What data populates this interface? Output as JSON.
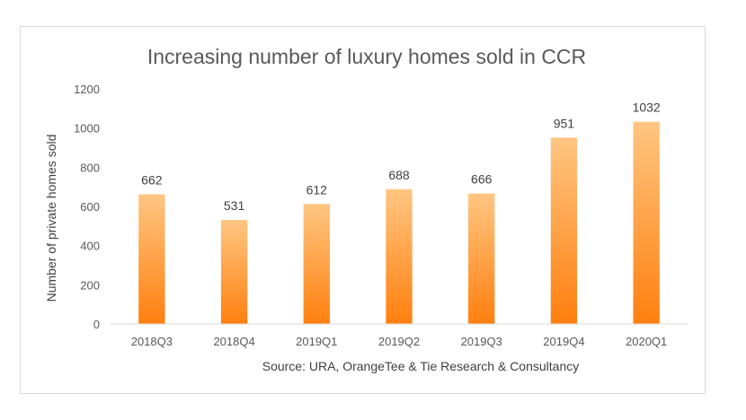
{
  "chart_data": {
    "type": "bar",
    "title": "Increasing number of luxury homes sold in CCR",
    "xlabel": "",
    "ylabel": "Number of private homes sold",
    "categories": [
      "2018Q3",
      "2018Q4",
      "2019Q1",
      "2019Q2",
      "2019Q3",
      "2019Q4",
      "2020Q1"
    ],
    "values": [
      662,
      531,
      612,
      688,
      666,
      951,
      1032
    ],
    "data_labels": [
      "662",
      "531",
      "612",
      "688",
      "666",
      "951",
      "1032"
    ],
    "ylim": [
      0,
      1200
    ],
    "yticks": [
      0,
      200,
      400,
      600,
      800,
      1000,
      1200
    ],
    "ytick_labels": [
      "0",
      "200",
      "400",
      "600",
      "800",
      "1000",
      "1200"
    ],
    "grid": false,
    "legend": "none",
    "source_note": "Source: URA, OrangeTee & Tie Research & Consultancy",
    "colors": {
      "bar_top": "#ffc682",
      "bar_bottom": "#ff7f0e",
      "axis": "#d9d9d9",
      "text": "#595959"
    }
  }
}
